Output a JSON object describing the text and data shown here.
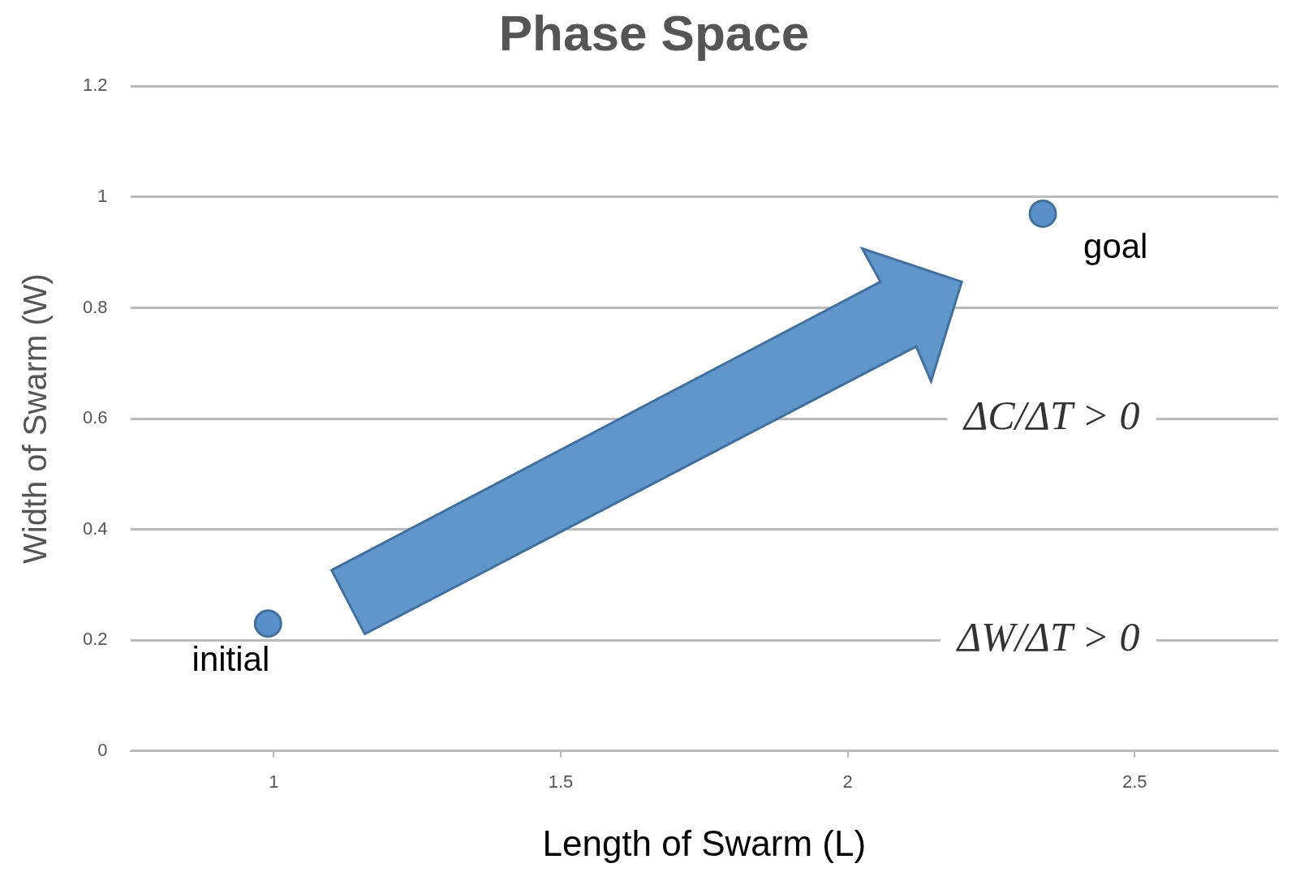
{
  "chart_data": {
    "type": "scatter",
    "title": "Phase Space",
    "xlabel": "Length of Swarm (L)",
    "ylabel": "Width of Swarm (W)",
    "x": [
      0.99,
      2.34
    ],
    "series": [
      {
        "color": "#5b8fc7",
        "values": [
          0.23,
          0.97
        ]
      }
    ],
    "xlim": [
      0.75,
      2.75
    ],
    "xticks": [
      1,
      1.5,
      2,
      2.5
    ],
    "ylim": [
      0,
      1.2
    ],
    "yticks": [
      0,
      0.2,
      0.4,
      0.6,
      0.8,
      1,
      1.2
    ],
    "grid": "y",
    "legend": false,
    "marker": "circle",
    "annotations": [
      {
        "text": "initial",
        "x": 0.99,
        "y": 0.23
      },
      {
        "text": "goal",
        "x": 2.34,
        "y": 0.97
      },
      "ΔC/ΔT > 0",
      "ΔW/ΔT > 0"
    ]
  }
}
